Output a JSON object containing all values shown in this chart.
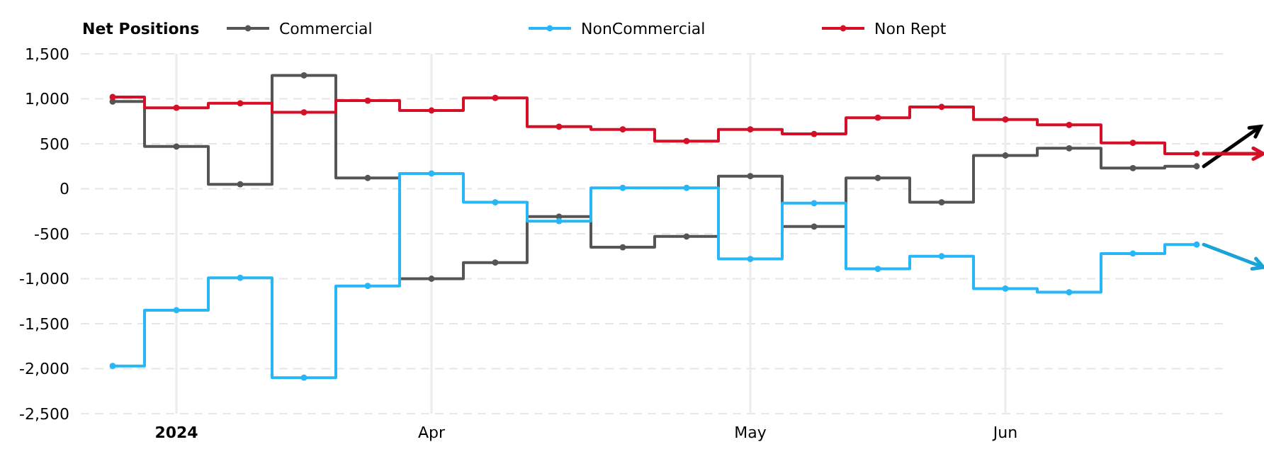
{
  "chart_data": {
    "type": "step",
    "legend_title": "Net Positions",
    "legend": "top left",
    "grid": true,
    "marker": "circle",
    "line_style": "solid",
    "categories": [
      null,
      "2024",
      null,
      null,
      null,
      "Apr",
      null,
      null,
      null,
      null,
      "May",
      null,
      null,
      null,
      "Jun",
      null,
      null,
      null
    ],
    "ylim": [
      -2500,
      1500
    ],
    "yticks": [
      {
        "value": -2500,
        "label": "-2,500"
      },
      {
        "value": -2000,
        "label": "-2,000"
      },
      {
        "value": -1500,
        "label": "-1,500"
      },
      {
        "value": -1000,
        "label": "-1,000"
      },
      -500,
      0,
      500,
      {
        "value": 1000,
        "label": "1,000"
      },
      {
        "value": 1500,
        "label": "1,500"
      }
    ],
    "series": [
      {
        "name": "Commercial",
        "color": "#555555",
        "values": [
          970,
          470,
          50,
          1260,
          120,
          -1000,
          -820,
          -310,
          -650,
          -530,
          140,
          -420,
          120,
          -150,
          370,
          450,
          230,
          250
        ]
      },
      {
        "name": "NonCommercial",
        "color": "#29b6f6",
        "values": [
          -1970,
          -1350,
          -990,
          -2100,
          -1080,
          170,
          -150,
          -360,
          10,
          10,
          -780,
          -160,
          -890,
          -750,
          -1110,
          -1150,
          -720,
          -620
        ]
      },
      {
        "name": "Non Rept",
        "color": "#d50f25",
        "values": [
          1020,
          900,
          950,
          850,
          980,
          870,
          1010,
          690,
          660,
          530,
          660,
          610,
          790,
          910,
          770,
          710,
          510,
          390
        ]
      }
    ]
  }
}
